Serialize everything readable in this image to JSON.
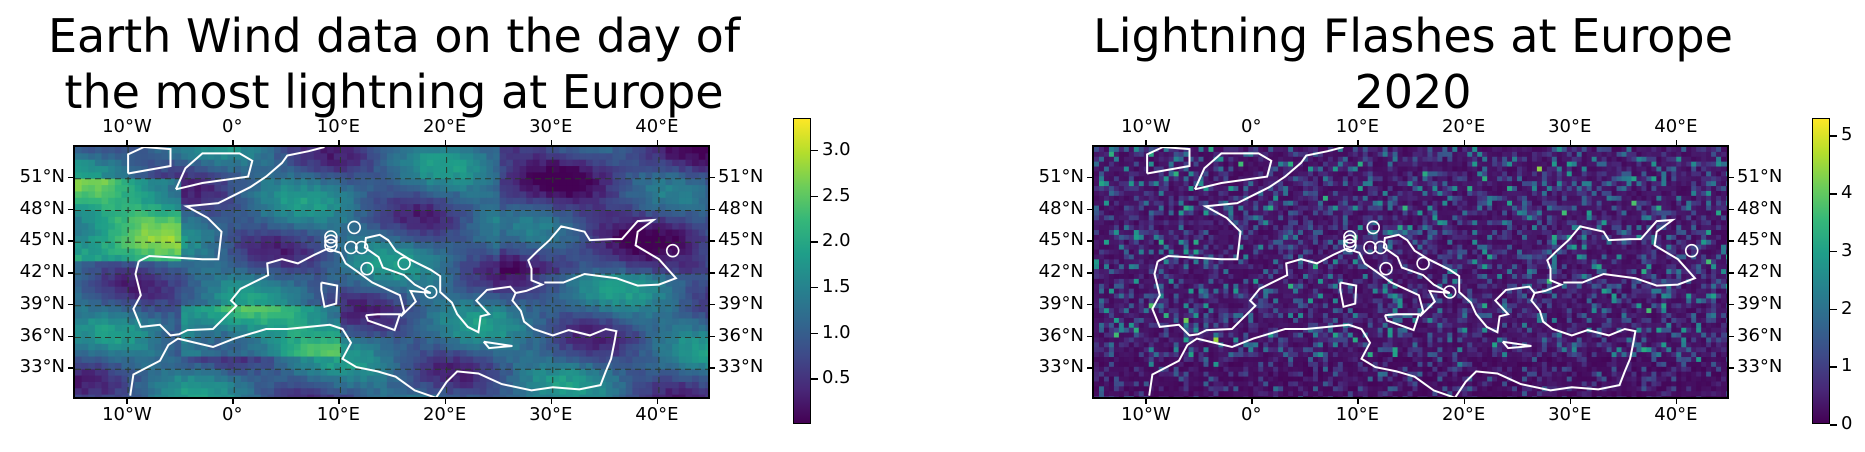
{
  "charts": [
    {
      "title_line1": "Earth Wind data on the day of",
      "title_line2": "the most lightning at Europe",
      "colorbar_ticks": [
        "0.5",
        "1.0",
        "1.5",
        "2.0",
        "2.5",
        "3.0"
      ]
    },
    {
      "title_line1": "Lightning Flashes at Europe",
      "title_line2": "2020",
      "colorbar_ticks": [
        "0",
        "1",
        "2",
        "3",
        "4",
        "5"
      ]
    }
  ],
  "lon_ticks": [
    "10°W",
    "0°",
    "10°E",
    "20°E",
    "30°E",
    "40°E"
  ],
  "lat_ticks": [
    "51°N",
    "48°N",
    "45°N",
    "42°N",
    "39°N",
    "36°N",
    "33°N"
  ],
  "chart_data": [
    {
      "type": "heatmap",
      "title": "Earth Wind data on the day of the most lightning at Europe",
      "extent": {
        "lon": [
          -15,
          45
        ],
        "lat": [
          30,
          54
        ]
      },
      "x_ticks": [
        -10,
        0,
        10,
        20,
        30,
        40
      ],
      "y_ticks": [
        51,
        48,
        45,
        42,
        39,
        36,
        33
      ],
      "colormap": "viridis",
      "colorbar_range": [
        0.0,
        3.35
      ],
      "grid": true,
      "markers_lonlat": [
        [
          9.1,
          45.5
        ],
        [
          9.1,
          45.1
        ],
        [
          9.1,
          44.7
        ],
        [
          11.3,
          46.4
        ],
        [
          11.0,
          44.5
        ],
        [
          12.0,
          44.5
        ],
        [
          12.5,
          42.5
        ],
        [
          16.0,
          43.0
        ],
        [
          18.5,
          40.3
        ],
        [
          41.3,
          44.2
        ]
      ]
    },
    {
      "type": "heatmap",
      "title": "Lightning Flashes at Europe 2020",
      "extent": {
        "lon": [
          -15,
          45
        ],
        "lat": [
          30,
          54
        ]
      },
      "x_ticks": [
        -10,
        0,
        10,
        20,
        30,
        40
      ],
      "y_ticks": [
        51,
        48,
        45,
        42,
        39,
        36,
        33
      ],
      "colormap": "viridis",
      "colorbar_range": [
        0,
        5.3
      ],
      "grid": false,
      "markers_lonlat": [
        [
          9.1,
          45.5
        ],
        [
          9.1,
          45.1
        ],
        [
          9.1,
          44.7
        ],
        [
          11.3,
          46.4
        ],
        [
          11.0,
          44.5
        ],
        [
          12.0,
          44.5
        ],
        [
          12.5,
          42.5
        ],
        [
          16.0,
          43.0
        ],
        [
          18.5,
          40.3
        ],
        [
          41.3,
          44.2
        ]
      ]
    }
  ]
}
